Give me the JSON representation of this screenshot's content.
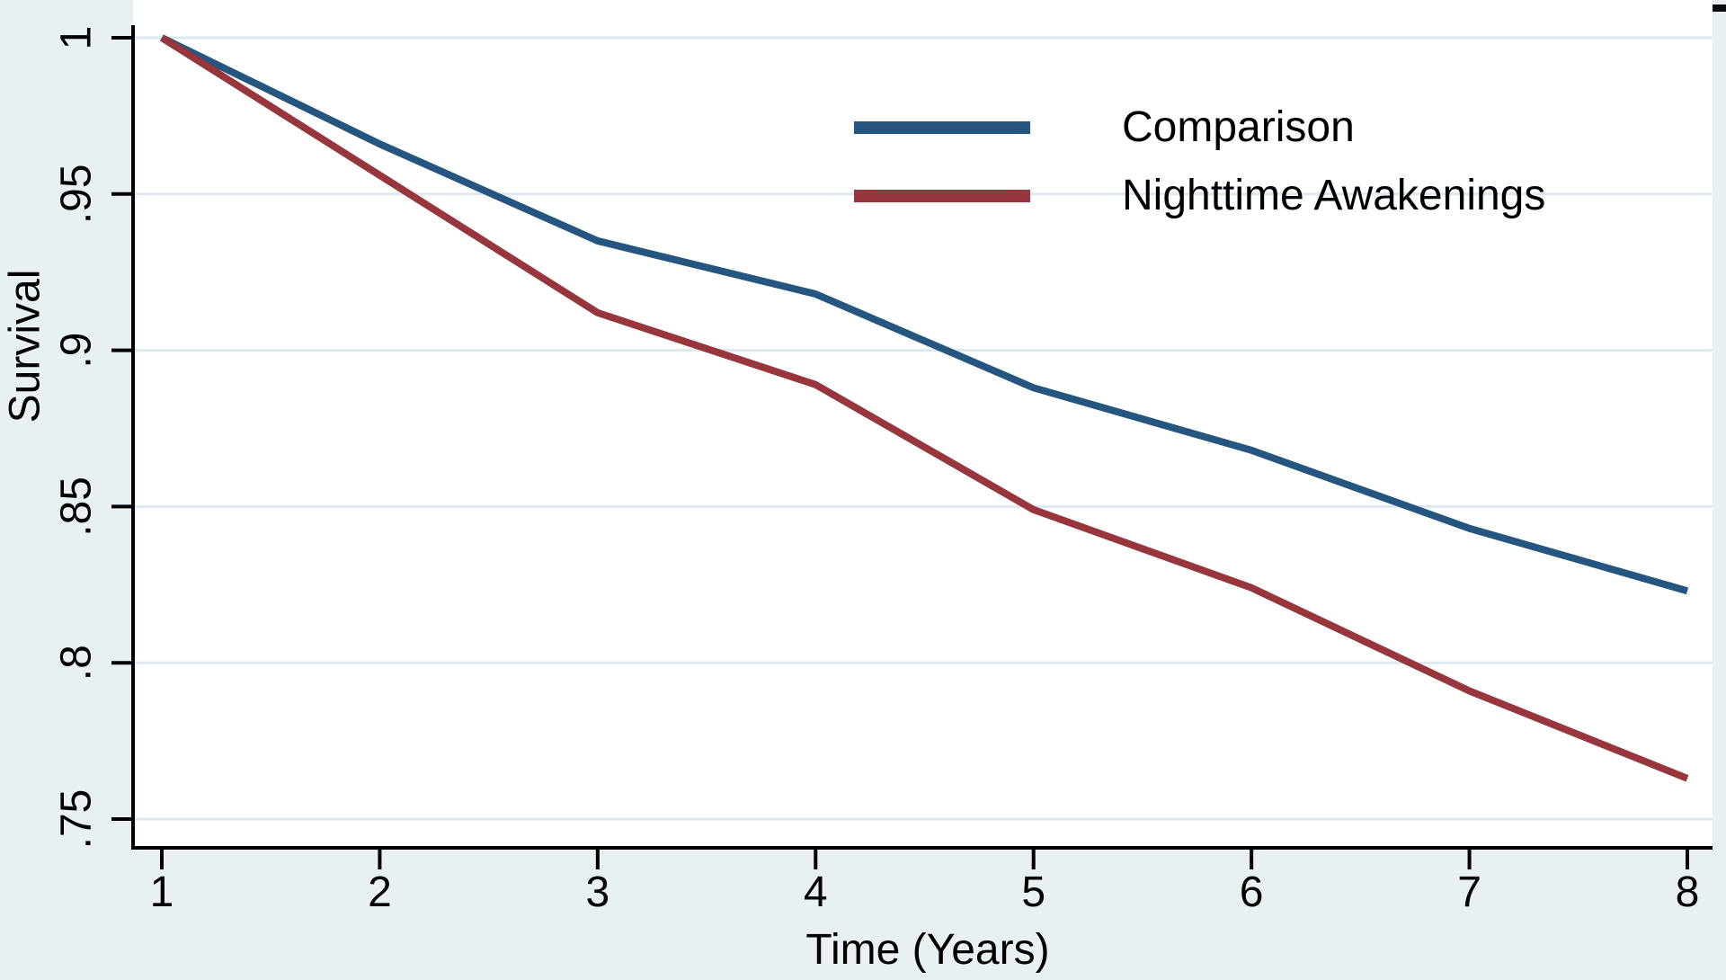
{
  "chart_data": {
    "type": "line",
    "x": [
      1,
      2,
      3,
      4,
      5,
      6,
      7,
      8
    ],
    "series": [
      {
        "name": "Comparison",
        "color": "#25567f",
        "values": [
          1,
          0.966,
          0.935,
          0.918,
          0.888,
          0.868,
          0.843,
          0.823
        ]
      },
      {
        "name": "Nighttime Awakenings",
        "color": "#97363d",
        "values": [
          1,
          0.956,
          0.912,
          0.889,
          0.849,
          0.824,
          0.791,
          0.763
        ]
      }
    ],
    "title": "",
    "xlabel": "Time (Years)",
    "ylabel": "Survival",
    "x_axis": {
      "tick_values": [
        1,
        2,
        3,
        4,
        5,
        6,
        7,
        8
      ],
      "tick_labels": [
        "1",
        "2",
        "3",
        "4",
        "5",
        "6",
        "7",
        "8"
      ]
    },
    "y_axis": {
      "tick_values": [
        1,
        0.95,
        0.9,
        0.85,
        0.8,
        0.75
      ],
      "tick_labels": [
        "1",
        ".95",
        ".9",
        ".85",
        ".8",
        ".75"
      ]
    },
    "ylim": [
      0.741,
      1.012
    ],
    "xlim": [
      1,
      8
    ],
    "grid": "horizontal",
    "legend_position": "top-right",
    "colors": {
      "page_background": "#e9f0f3",
      "plot_background": "#ffffff",
      "gridline": "#dde9f1",
      "axis": "#000000"
    }
  },
  "legend": {
    "items": [
      {
        "label": "Comparison"
      },
      {
        "label": "Nighttime Awakenings"
      }
    ]
  },
  "axes": {
    "y_title": "Survival",
    "x_title": "Time (Years)"
  }
}
